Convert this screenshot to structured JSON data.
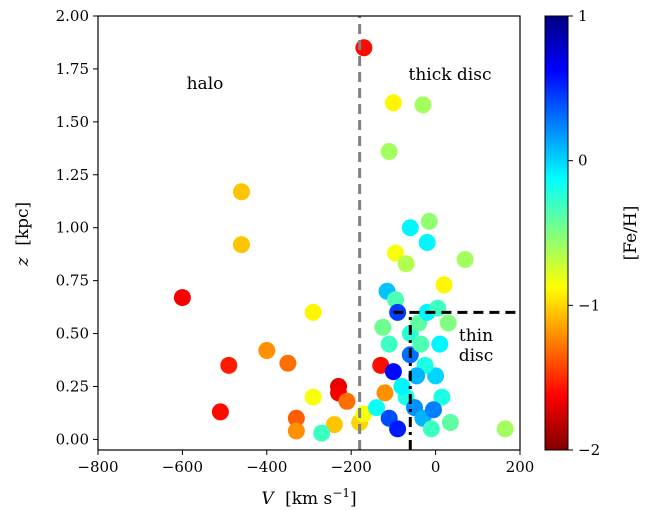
{
  "chart_data": {
    "type": "scatter",
    "xlabel_var": "V",
    "xlabel_unit": "[km s",
    "xlabel_exp": "−1",
    "xlabel_close": "]",
    "ylabel_var": "z",
    "ylabel_unit": "[kpc]",
    "colorbar_label": "[Fe/H]",
    "xlim": [
      -800,
      200
    ],
    "ylim": [
      -0.05,
      2.0
    ],
    "clim": [
      -2,
      1
    ],
    "x_ticks": [
      -800,
      -600,
      -400,
      -200,
      0,
      200
    ],
    "x_tick_labels": [
      "−800",
      "−600",
      "−400",
      "−200",
      "0",
      "200"
    ],
    "y_ticks": [
      0.0,
      0.25,
      0.5,
      0.75,
      1.0,
      1.25,
      1.5,
      1.75,
      2.0
    ],
    "y_tick_labels": [
      "0.00",
      "0.25",
      "0.50",
      "0.75",
      "1.00",
      "1.25",
      "1.50",
      "1.75",
      "2.00"
    ],
    "colorbar_ticks": [
      1,
      0,
      -1,
      -2
    ],
    "colorbar_tick_labels": [
      "1",
      "0",
      "−1",
      "−2"
    ],
    "colormap": [
      "#800000",
      "#ff0000",
      "#ff8000",
      "#ffff00",
      "#80ff80",
      "#00ffff",
      "#0080ff",
      "#0000ff",
      "#000080"
    ],
    "annotations": [
      "halo",
      "thick disc",
      "thin",
      "disc"
    ],
    "lines": [
      {
        "type": "vertical",
        "x": -180,
        "y_range": [
          -0.05,
          2.0
        ],
        "color": "#808080",
        "dash": "dashed"
      },
      {
        "type": "horizontal",
        "y": 0.6,
        "x_range": [
          -100,
          200
        ],
        "color": "#000000",
        "dash": "dashed"
      },
      {
        "type": "vertical",
        "x": -60,
        "y_range": [
          -0.05,
          0.6
        ],
        "color": "#000000",
        "dash": "dashdot"
      }
    ],
    "points": [
      {
        "x": -170,
        "y": 1.85,
        "feh": -1.6
      },
      {
        "x": -100,
        "y": 1.59,
        "feh": -0.9
      },
      {
        "x": -30,
        "y": 1.58,
        "feh": -0.6
      },
      {
        "x": -110,
        "y": 1.36,
        "feh": -0.6
      },
      {
        "x": -460,
        "y": 1.17,
        "feh": -1.05
      },
      {
        "x": -460,
        "y": 0.92,
        "feh": -1.05
      },
      {
        "x": -60,
        "y": 1.0,
        "feh": -0.1
      },
      {
        "x": -15,
        "y": 1.03,
        "feh": -0.55
      },
      {
        "x": -20,
        "y": 0.93,
        "feh": -0.1
      },
      {
        "x": -95,
        "y": 0.88,
        "feh": -0.85
      },
      {
        "x": -70,
        "y": 0.83,
        "feh": -0.65
      },
      {
        "x": 70,
        "y": 0.85,
        "feh": -0.6
      },
      {
        "x": 20,
        "y": 0.73,
        "feh": -0.9
      },
      {
        "x": -600,
        "y": 0.67,
        "feh": -1.65
      },
      {
        "x": -290,
        "y": 0.6,
        "feh": -0.9
      },
      {
        "x": -400,
        "y": 0.42,
        "feh": -1.2
      },
      {
        "x": -350,
        "y": 0.36,
        "feh": -1.3
      },
      {
        "x": -490,
        "y": 0.35,
        "feh": -1.55
      },
      {
        "x": -510,
        "y": 0.13,
        "feh": -1.6
      },
      {
        "x": -330,
        "y": 0.1,
        "feh": -1.35
      },
      {
        "x": -330,
        "y": 0.04,
        "feh": -1.2
      },
      {
        "x": -290,
        "y": 0.2,
        "feh": -0.85
      },
      {
        "x": -230,
        "y": 0.25,
        "feh": -1.7
      },
      {
        "x": -230,
        "y": 0.22,
        "feh": -1.65
      },
      {
        "x": -210,
        "y": 0.18,
        "feh": -1.3
      },
      {
        "x": -240,
        "y": 0.07,
        "feh": -1.05
      },
      {
        "x": -270,
        "y": 0.03,
        "feh": -0.3
      },
      {
        "x": -180,
        "y": 0.08,
        "feh": -1.0
      },
      {
        "x": -170,
        "y": 0.12,
        "feh": -0.85
      },
      {
        "x": -130,
        "y": 0.35,
        "feh": -1.6
      },
      {
        "x": -120,
        "y": 0.22,
        "feh": -1.2
      },
      {
        "x": -115,
        "y": 0.7,
        "feh": 0.05
      },
      {
        "x": -95,
        "y": 0.66,
        "feh": -0.35
      },
      {
        "x": -90,
        "y": 0.6,
        "feh": 0.45
      },
      {
        "x": -110,
        "y": 0.45,
        "feh": -0.3
      },
      {
        "x": -100,
        "y": 0.32,
        "feh": 0.6
      },
      {
        "x": -60,
        "y": 0.5,
        "feh": -0.25
      },
      {
        "x": -40,
        "y": 0.55,
        "feh": -0.4
      },
      {
        "x": -20,
        "y": 0.6,
        "feh": -0.1
      },
      {
        "x": 5,
        "y": 0.62,
        "feh": -0.3
      },
      {
        "x": 30,
        "y": 0.55,
        "feh": -0.5
      },
      {
        "x": -140,
        "y": 0.15,
        "feh": -0.15
      },
      {
        "x": -110,
        "y": 0.1,
        "feh": 0.4
      },
      {
        "x": -90,
        "y": 0.05,
        "feh": 0.55
      },
      {
        "x": -70,
        "y": 0.2,
        "feh": -0.2
      },
      {
        "x": -50,
        "y": 0.15,
        "feh": 0.2
      },
      {
        "x": -30,
        "y": 0.1,
        "feh": 0.1
      },
      {
        "x": -10,
        "y": 0.05,
        "feh": -0.3
      },
      {
        "x": 0,
        "y": 0.3,
        "feh": 0.0
      },
      {
        "x": 15,
        "y": 0.2,
        "feh": -0.2
      },
      {
        "x": 35,
        "y": 0.08,
        "feh": -0.4
      },
      {
        "x": 165,
        "y": 0.05,
        "feh": -0.6
      },
      {
        "x": -60,
        "y": 0.4,
        "feh": 0.3
      },
      {
        "x": -80,
        "y": 0.25,
        "feh": -0.1
      },
      {
        "x": -25,
        "y": 0.35,
        "feh": -0.2
      },
      {
        "x": -45,
        "y": 0.3,
        "feh": 0.1
      },
      {
        "x": -35,
        "y": 0.45,
        "feh": -0.35
      },
      {
        "x": 10,
        "y": 0.45,
        "feh": -0.1
      },
      {
        "x": -125,
        "y": 0.53,
        "feh": -0.45
      },
      {
        "x": -5,
        "y": 0.14,
        "feh": 0.25
      }
    ]
  }
}
